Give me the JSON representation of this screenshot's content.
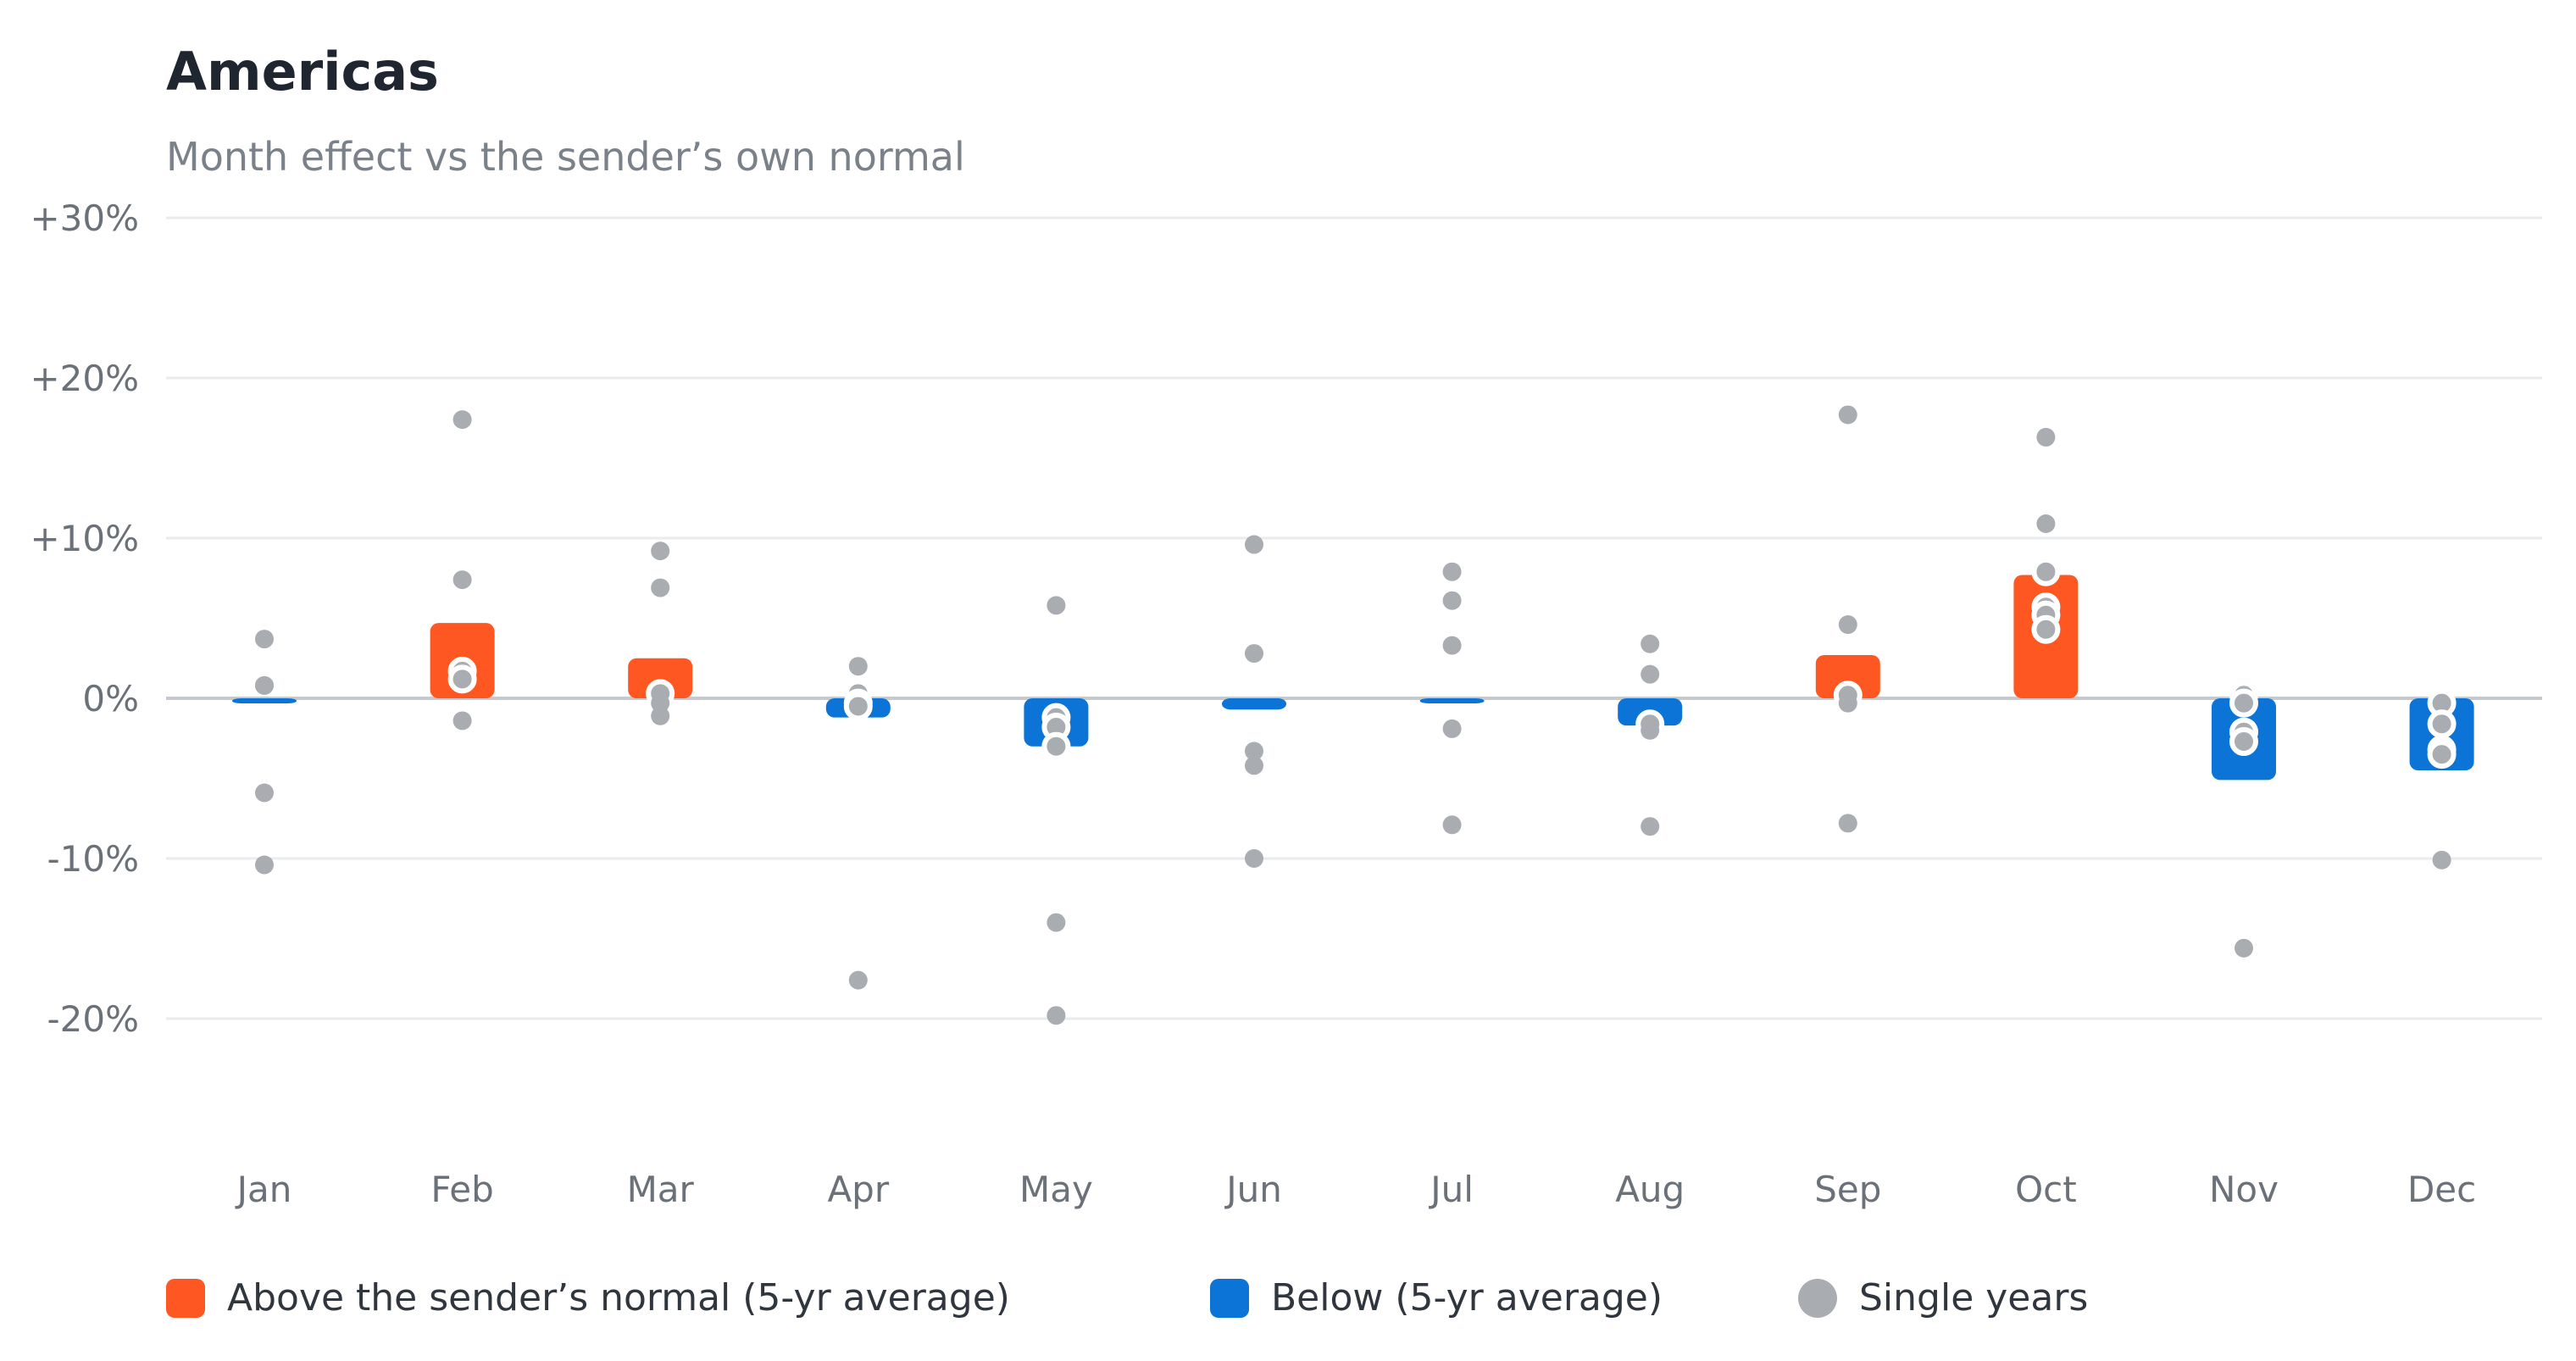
{
  "chart": {
    "title": "Americas",
    "subtitle": "Month effect vs the sender’s own normal"
  },
  "colors": {
    "above": "#ff5722",
    "below": "#0b74d6",
    "single": "#a9adb2",
    "grid": "#e9ebed",
    "zero": "#c6cace"
  },
  "legend": {
    "above": "Above the sender’s normal (5-yr average)",
    "below": "Below (5-yr average)",
    "single": "Single years"
  },
  "chart_data": {
    "type": "bar",
    "title": "Americas",
    "subtitle": "Month effect vs the sender’s own normal",
    "ylim": [
      -30,
      30
    ],
    "yticks": [
      30,
      20,
      10,
      0,
      -10,
      -20
    ],
    "ytick_labels": [
      "+30%",
      "+20%",
      "+10%",
      "0%",
      "-10%",
      "-20%"
    ],
    "grid": true,
    "legend_position": "bottom",
    "categories": [
      "Jan",
      "Feb",
      "Mar",
      "Apr",
      "May",
      "Jun",
      "Jul",
      "Aug",
      "Sep",
      "Oct",
      "Nov",
      "Dec"
    ],
    "series": [
      {
        "name": "5-yr average",
        "values": [
          -0.3,
          4.7,
          2.5,
          -1.2,
          -3.0,
          -0.7,
          -0.2,
          -1.7,
          2.7,
          7.7,
          -5.1,
          -4.5
        ]
      },
      {
        "name": "Single years",
        "points": [
          [
            3.7,
            0.8,
            0.8,
            -5.9,
            -10.4
          ],
          [
            17.4,
            7.4,
            1.7,
            1.2,
            -1.4
          ],
          [
            9.2,
            6.9,
            0.3,
            -0.3,
            -1.1
          ],
          [
            2.0,
            0.3,
            -0.3,
            -0.5,
            -17.6
          ],
          [
            5.8,
            -1.2,
            -1.8,
            -3.0,
            -14.0,
            -19.8
          ],
          [
            9.6,
            2.8,
            -3.3,
            -4.2,
            -10.0
          ],
          [
            7.9,
            6.1,
            3.3,
            -1.9,
            -7.9
          ],
          [
            3.4,
            1.5,
            -1.6,
            -2.0,
            -8.0
          ],
          [
            17.7,
            4.6,
            0.2,
            -0.3,
            -7.8
          ],
          [
            16.3,
            10.9,
            7.9,
            5.7,
            5.2,
            4.3
          ],
          [
            0.2,
            -0.3,
            -2.1,
            -2.7,
            -15.6
          ],
          [
            -0.3,
            -1.6,
            -3.2,
            -3.5,
            -10.1
          ]
        ]
      }
    ]
  }
}
